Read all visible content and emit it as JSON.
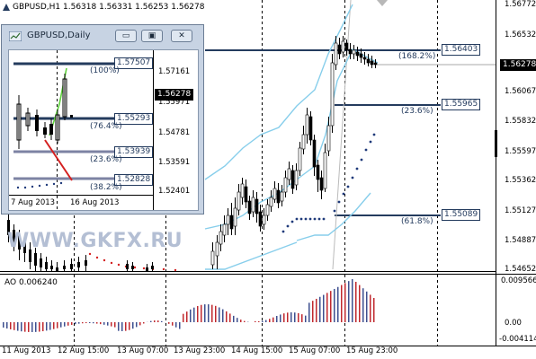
{
  "main": {
    "title": "GBPUSD,H1  1.56318 1.56331 1.56253 1.56278",
    "y_labels": [
      "1.56772",
      "1.56532",
      "1.56067",
      "1.55832",
      "1.55597",
      "1.55362",
      "1.55127",
      "1.54887",
      "1.54652"
    ],
    "current_price": "1.56278",
    "fib_levels": [
      {
        "pct": "(168.2%)",
        "price": "1.56403"
      },
      {
        "pct": "(23.6%)",
        "price": "1.55965"
      },
      {
        "pct": "(61.8%)",
        "price": "1.55089"
      }
    ],
    "watermark": "WWW.GKFX.RU",
    "ao": {
      "label": "AO 0.006240",
      "y_labels": [
        "0.009566",
        "0.00",
        "-0.004114"
      ]
    },
    "x_labels": [
      "11 Aug 2013",
      "12 Aug 15:00",
      "13 Aug 07:00",
      "13 Aug 23:00",
      "14 Aug 15:00",
      "15 Aug 07:00",
      "15 Aug 23:00"
    ]
  },
  "daily_window": {
    "title": "GBPUSD,Daily",
    "buttons": {
      "minimize": "▭",
      "restore": "▣",
      "close": "✕"
    },
    "y_labels": [
      "1.57161",
      "1.55971",
      "1.54781",
      "1.53591",
      "1.52401"
    ],
    "current_price": "1.56278",
    "fib_levels": [
      {
        "pct": "(100%)",
        "price": "1.57507"
      },
      {
        "pct": "(76.4%)",
        "price": "1.55293"
      },
      {
        "pct": "(23.6%)",
        "price": "1.53939"
      },
      {
        "pct": "(38.2%)",
        "price": "1.52828"
      }
    ],
    "x_labels": [
      "7 Aug 2013",
      "16 Aug 2013"
    ]
  },
  "colors": {
    "fib_line": "#243b5e",
    "bollinger": "#87ceeb",
    "sar_up": "#1f3a7a",
    "sar_down": "#d42020",
    "ao_up": "#3d4f8f",
    "ao_down": "#c0282e",
    "grid_dashed": "#000000"
  }
}
